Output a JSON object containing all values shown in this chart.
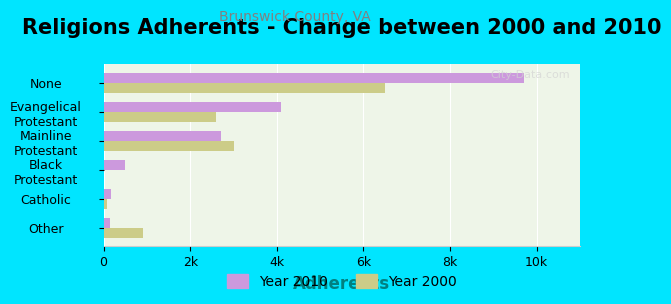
{
  "title": "Religions Adherents - Change between 2000 and 2010",
  "subtitle": "Brunswick County, VA",
  "xlabel": "Adherents",
  "categories": [
    "Other",
    "Catholic",
    "Black\nProtestant",
    "Mainline\nProtestant",
    "Evangelical\nProtestant",
    "None"
  ],
  "values_2010": [
    150,
    180,
    500,
    2700,
    4100,
    9700
  ],
  "values_2000": [
    900,
    70,
    0,
    3000,
    2600,
    6500
  ],
  "color_2010": "#cc99dd",
  "color_2000": "#cccc88",
  "bg_outer": "#00e5ff",
  "bg_plot": "#eef5e8",
  "title_fontsize": 15,
  "subtitle_fontsize": 10,
  "xlabel_fontsize": 12,
  "tick_fontsize": 9,
  "legend_fontsize": 10,
  "xlim": [
    0,
    11000
  ],
  "xticks": [
    0,
    2000,
    4000,
    6000,
    8000,
    10000
  ],
  "xticklabels": [
    "0",
    "2k",
    "4k",
    "6k",
    "8k",
    "10k"
  ],
  "watermark": "City-Data.com"
}
